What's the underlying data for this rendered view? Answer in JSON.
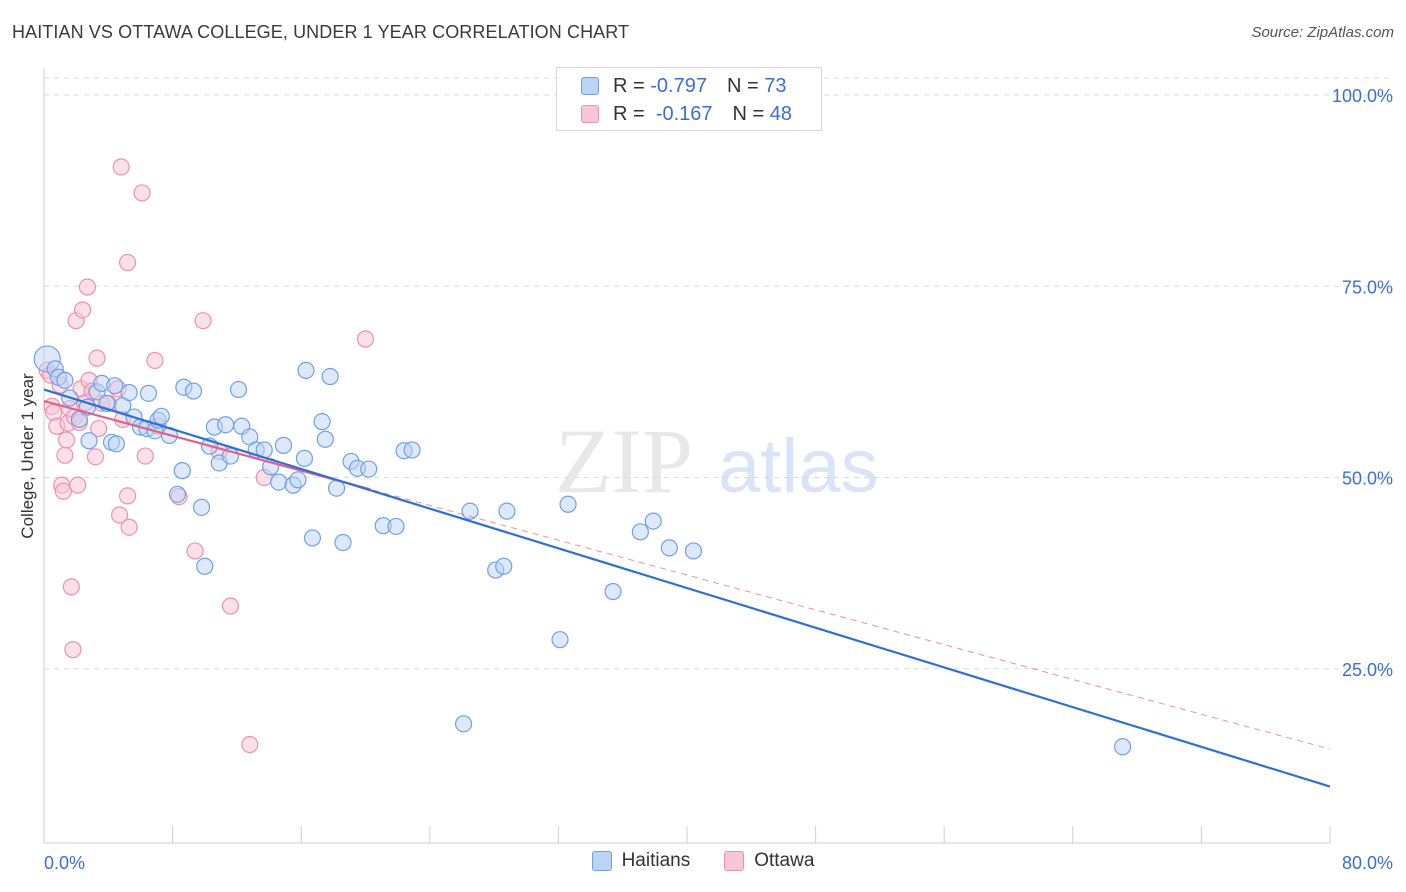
{
  "title": "HAITIAN VS OTTAWA COLLEGE, UNDER 1 YEAR CORRELATION CHART",
  "source": "Source: ZipAtlas.com",
  "watermark": {
    "zip": "ZIP",
    "atlas": "atlas"
  },
  "legend_stats": {
    "row1": {
      "r_label": "R =",
      "r_value": "-0.797",
      "n_label": "N =",
      "n_value": "73"
    },
    "row2": {
      "r_label": "R =",
      "r_value": "-0.167",
      "n_label": "N =",
      "n_value": "48"
    }
  },
  "legend": {
    "haitians": "Haitians",
    "ottawa": "Ottawa"
  },
  "colors": {
    "blue": "#6fa0e6",
    "blue_fill": "#bcd3f5",
    "blue_line": "#2f6fd6",
    "pink": "#ec92ae",
    "pink_fill": "#f8c6d6",
    "pink_line": "#e0608a",
    "axis_text": "#3a6fd8",
    "grid": "#d9d9d9"
  },
  "chart_data": {
    "type": "scatter",
    "title": "HAITIAN VS OTTAWA COLLEGE, UNDER 1 YEAR CORRELATION CHART",
    "xlabel": "",
    "ylabel": "College, Under 1 year",
    "xlim": [
      0,
      80
    ],
    "ylim": [
      0,
      105
    ],
    "x_tick_labels": [
      "0.0%",
      "80.0%"
    ],
    "y_ticks": [
      25,
      50,
      75,
      100
    ],
    "y_tick_labels": [
      "25.0%",
      "50.0%",
      "75.0%",
      "100.0%"
    ],
    "grid": true,
    "series": [
      {
        "name": "Haitians",
        "r": -0.797,
        "n": 73,
        "trend": {
          "x": [
            0,
            80
          ],
          "y": [
            61.5,
            9.6
          ]
        },
        "points": [
          [
            0.2,
            65.5
          ],
          [
            0.7,
            64.2
          ],
          [
            0.9,
            63.1
          ],
          [
            1.3,
            62.7
          ],
          [
            1.6,
            60.4
          ],
          [
            2.2,
            57.6
          ],
          [
            2.7,
            59.2
          ],
          [
            2.8,
            54.8
          ],
          [
            3.3,
            61.2
          ],
          [
            3.6,
            62.3
          ],
          [
            3.9,
            59.7
          ],
          [
            4.4,
            62.0
          ],
          [
            4.2,
            54.6
          ],
          [
            4.5,
            54.4
          ],
          [
            4.9,
            59.4
          ],
          [
            5.3,
            61.1
          ],
          [
            5.6,
            57.9
          ],
          [
            6.0,
            56.6
          ],
          [
            6.4,
            56.4
          ],
          [
            6.5,
            61.0
          ],
          [
            6.9,
            56.1
          ],
          [
            7.1,
            57.5
          ],
          [
            7.3,
            58.0
          ],
          [
            7.8,
            55.5
          ],
          [
            8.3,
            47.8
          ],
          [
            8.6,
            50.9
          ],
          [
            8.7,
            61.8
          ],
          [
            9.3,
            61.3
          ],
          [
            9.8,
            46.1
          ],
          [
            10.0,
            38.4
          ],
          [
            10.3,
            54.1
          ],
          [
            10.6,
            56.6
          ],
          [
            10.9,
            51.9
          ],
          [
            11.3,
            56.9
          ],
          [
            11.6,
            52.8
          ],
          [
            12.1,
            61.5
          ],
          [
            12.3,
            56.7
          ],
          [
            12.8,
            55.3
          ],
          [
            13.2,
            53.6
          ],
          [
            13.7,
            53.6
          ],
          [
            14.1,
            51.4
          ],
          [
            14.6,
            49.4
          ],
          [
            14.9,
            54.2
          ],
          [
            15.5,
            49.0
          ],
          [
            15.8,
            49.7
          ],
          [
            16.2,
            52.5
          ],
          [
            16.3,
            64.0
          ],
          [
            16.7,
            42.1
          ],
          [
            17.3,
            57.3
          ],
          [
            17.5,
            55.0
          ],
          [
            17.8,
            63.2
          ],
          [
            18.2,
            48.6
          ],
          [
            18.6,
            41.5
          ],
          [
            19.1,
            52.1
          ],
          [
            19.5,
            51.2
          ],
          [
            20.2,
            51.1
          ],
          [
            21.1,
            43.7
          ],
          [
            21.9,
            43.6
          ],
          [
            22.4,
            53.5
          ],
          [
            22.9,
            53.6
          ],
          [
            26.1,
            17.8
          ],
          [
            26.5,
            45.6
          ],
          [
            28.1,
            37.9
          ],
          [
            28.6,
            38.4
          ],
          [
            28.8,
            45.6
          ],
          [
            32.1,
            28.8
          ],
          [
            32.6,
            46.5
          ],
          [
            35.4,
            35.1
          ],
          [
            37.1,
            42.9
          ],
          [
            37.9,
            44.3
          ],
          [
            38.9,
            40.8
          ],
          [
            40.4,
            40.4
          ],
          [
            67.1,
            14.8
          ]
        ]
      },
      {
        "name": "Ottawa",
        "r": -0.167,
        "n": 48,
        "trend": {
          "x": [
            0,
            80
          ],
          "y": [
            60.0,
            14.5
          ]
        },
        "points": [
          [
            0.2,
            64.0
          ],
          [
            0.4,
            63.4
          ],
          [
            0.5,
            59.3
          ],
          [
            0.6,
            58.5
          ],
          [
            0.8,
            56.7
          ],
          [
            1.0,
            62.1
          ],
          [
            1.1,
            49.0
          ],
          [
            1.2,
            48.2
          ],
          [
            1.3,
            52.9
          ],
          [
            1.4,
            54.9
          ],
          [
            1.5,
            57.1
          ],
          [
            1.6,
            59.0
          ],
          [
            1.7,
            35.7
          ],
          [
            1.8,
            27.5
          ],
          [
            1.9,
            57.9
          ],
          [
            2.0,
            70.5
          ],
          [
            2.1,
            49.0
          ],
          [
            2.2,
            57.2
          ],
          [
            2.3,
            61.6
          ],
          [
            2.4,
            71.9
          ],
          [
            2.6,
            59.8
          ],
          [
            2.7,
            74.9
          ],
          [
            2.8,
            62.7
          ],
          [
            3.0,
            61.3
          ],
          [
            3.2,
            52.7
          ],
          [
            3.3,
            65.6
          ],
          [
            3.4,
            56.4
          ],
          [
            3.6,
            59.7
          ],
          [
            4.0,
            59.7
          ],
          [
            4.6,
            61.6
          ],
          [
            4.7,
            45.1
          ],
          [
            4.8,
            90.6
          ],
          [
            4.9,
            57.6
          ],
          [
            5.2,
            47.6
          ],
          [
            5.3,
            43.5
          ],
          [
            5.2,
            78.1
          ],
          [
            6.1,
            87.2
          ],
          [
            6.3,
            52.8
          ],
          [
            6.9,
            65.3
          ],
          [
            7.1,
            56.7
          ],
          [
            8.4,
            47.5
          ],
          [
            9.4,
            40.4
          ],
          [
            9.9,
            70.5
          ],
          [
            10.9,
            53.4
          ],
          [
            11.6,
            33.2
          ],
          [
            12.8,
            15.1
          ],
          [
            13.7,
            50.0
          ],
          [
            20.0,
            68.1
          ]
        ]
      }
    ]
  }
}
